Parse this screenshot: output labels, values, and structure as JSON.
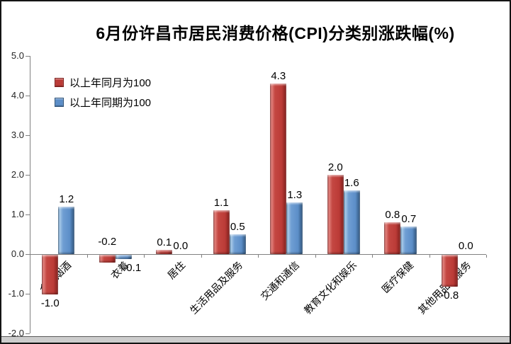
{
  "chart_data": {
    "type": "bar",
    "title": "6月份许昌市居民消费价格(CPI)分类别涨跌幅(%)",
    "categories": [
      "食品烟酒",
      "衣着",
      "居住",
      "生活用品及服务",
      "交通和通信",
      "教育文化和娱乐",
      "医疗保健",
      "其他用品和服务"
    ],
    "series": [
      {
        "name": "以上年同月为100",
        "color": "#bb3b37",
        "values": [
          -1.0,
          -0.2,
          0.1,
          1.1,
          4.3,
          2.0,
          0.8,
          -0.8
        ]
      },
      {
        "name": "以上年同期为100",
        "color": "#5c8ec8",
        "values": [
          1.2,
          -0.1,
          0.0,
          0.5,
          1.3,
          1.6,
          0.7,
          0.0
        ]
      }
    ],
    "ylim": [
      -2.0,
      5.0
    ],
    "ytick_step": 1.0,
    "ytick_labels": [
      "5.0",
      "4.0",
      "3.0",
      "2.0",
      "1.0",
      "0.0",
      "-1.0",
      "-2.0"
    ],
    "data_labels": true,
    "grid": false,
    "legend_position": "upper-left-inside",
    "axis_color": "#808080",
    "label_overrides": [
      {
        "series": 0,
        "category": 1,
        "position": "above_axis"
      },
      {
        "series": 1,
        "category": 1,
        "dx": 12
      }
    ]
  }
}
